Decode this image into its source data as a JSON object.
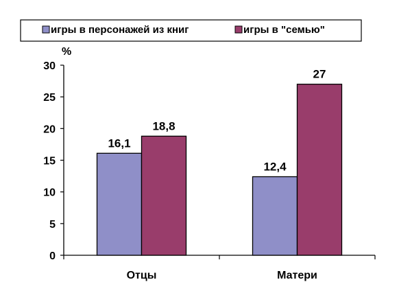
{
  "chart_data": {
    "type": "bar",
    "categories": [
      "Отцы",
      "Матери"
    ],
    "series": [
      {
        "name": "игры в персонажей из книг",
        "values": [
          16.1,
          12.4
        ],
        "labels": [
          "16,1",
          "12,4"
        ],
        "color": "#8f8fc8"
      },
      {
        "name": "игры в \"семью\"",
        "values": [
          18.8,
          27
        ],
        "labels": [
          "18,8",
          "27"
        ],
        "color": "#993d6b"
      }
    ],
    "y_unit": "%",
    "ylim": [
      0,
      30
    ],
    "yticks": [
      0,
      5,
      10,
      15,
      20,
      25,
      30
    ],
    "grid": false,
    "legend_position": "top"
  }
}
